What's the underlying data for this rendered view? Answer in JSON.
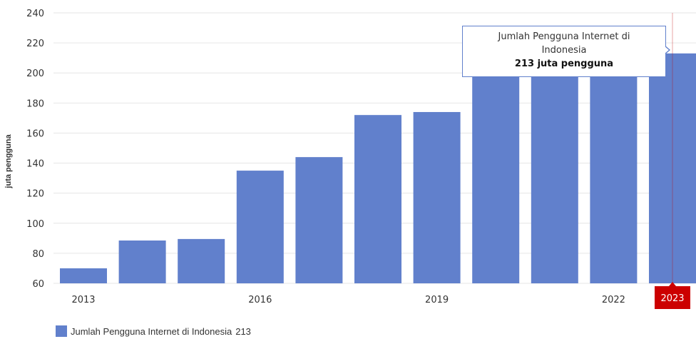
{
  "chart_data": {
    "type": "bar",
    "title": "",
    "xlabel": "",
    "ylabel": "juta pengguna",
    "ylim": [
      60,
      240
    ],
    "y_ticks": [
      60,
      80,
      100,
      120,
      140,
      160,
      180,
      200,
      220,
      240
    ],
    "categories": [
      2013,
      2014,
      2015,
      2016,
      2017,
      2018,
      2019,
      2020,
      2021,
      2022,
      2023
    ],
    "x_tick_labels": [
      "2013",
      "2016",
      "2019",
      "2022"
    ],
    "highlighted_category": "2023",
    "grid": true,
    "legend_position": "bottom-left",
    "series": [
      {
        "name": "Jumlah Pengguna Internet di Indonesia",
        "color": "#6180cc",
        "values": [
          70,
          88.5,
          89.5,
          135,
          144,
          172,
          174,
          200,
          202,
          202,
          213
        ]
      }
    ],
    "tooltip": {
      "series_name": "Jumlah Pengguna Internet di Indonesia",
      "value_text": "213 juta pengguna"
    },
    "legend": {
      "label": "Jumlah Pengguna Internet di Indonesia",
      "value": "213"
    }
  }
}
